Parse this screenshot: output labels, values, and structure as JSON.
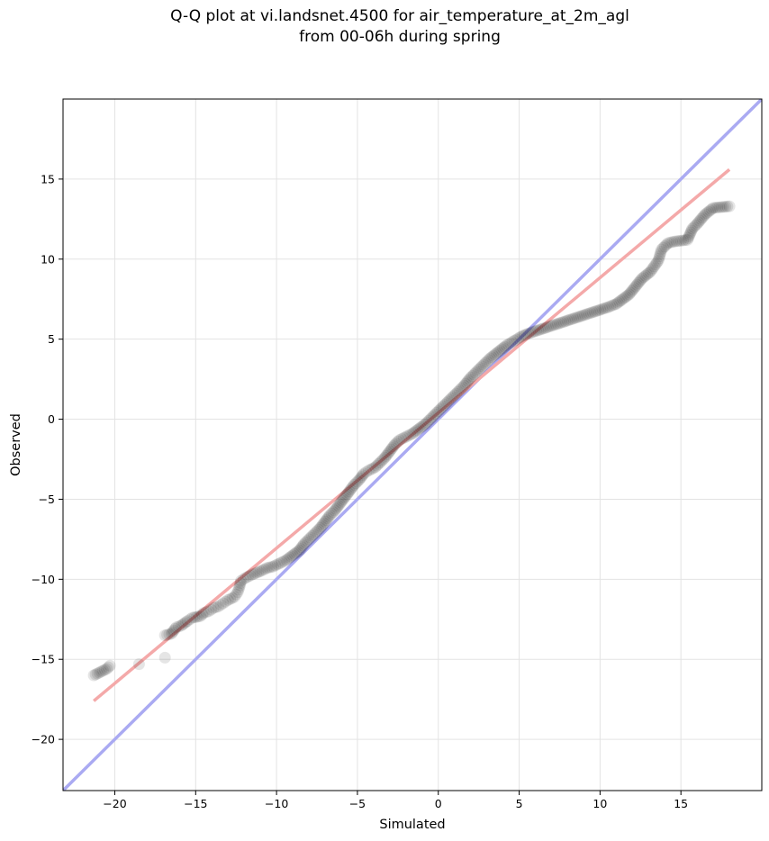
{
  "chart_data": {
    "type": "scatter",
    "title": "Q-Q plot at vi.landsnet.4500 for air_temperature_at_2m_agl",
    "subtitle": "from 00-06h during spring",
    "xlabel": "Simulated",
    "ylabel": "Observed",
    "xlim": [
      -23.2,
      20.0
    ],
    "ylim": [
      -23.2,
      20.0
    ],
    "x_ticks": [
      -20,
      -15,
      -10,
      -5,
      0,
      5,
      10,
      15
    ],
    "y_ticks": [
      -20,
      -15,
      -10,
      -5,
      0,
      5,
      10,
      15
    ],
    "x_tick_labels": [
      "−20",
      "−15",
      "−10",
      "−5",
      "0",
      "5",
      "10",
      "15"
    ],
    "y_tick_labels": [
      "−20",
      "−15",
      "−10",
      "−5",
      "0",
      "5",
      "10",
      "15"
    ],
    "grid": true,
    "legend": "none",
    "reference_line": {
      "name": "1:1 line",
      "color": "#aaaaf2",
      "x": [
        -23.2,
        20.0
      ],
      "y": [
        -23.2,
        20.0
      ]
    },
    "fit_line": {
      "name": "linear fit",
      "color": "#f4a9a9",
      "x": [
        -21.3,
        18.0
      ],
      "y": [
        -17.6,
        15.6
      ]
    },
    "points_color": "#000000",
    "points": [
      [
        -21.3,
        -16.0
      ],
      [
        -20.5,
        -15.6
      ],
      [
        -20.3,
        -15.4
      ],
      [
        -18.5,
        -15.3
      ],
      [
        -16.9,
        -14.9
      ],
      [
        -16.9,
        -13.5
      ],
      [
        -16.5,
        -13.4
      ],
      [
        -16.2,
        -13.0
      ],
      [
        -15.9,
        -12.9
      ],
      [
        -15.5,
        -12.6
      ],
      [
        -15.2,
        -12.4
      ],
      [
        -14.7,
        -12.3
      ],
      [
        -14.5,
        -12.1
      ],
      [
        -14.2,
        -12.0
      ],
      [
        -13.9,
        -11.8
      ],
      [
        -13.6,
        -11.7
      ],
      [
        -13.3,
        -11.5
      ],
      [
        -13.0,
        -11.3
      ],
      [
        -12.6,
        -11.1
      ],
      [
        -12.4,
        -10.8
      ],
      [
        -12.3,
        -10.5
      ],
      [
        -12.2,
        -10.1
      ],
      [
        -11.9,
        -9.9
      ],
      [
        -11.5,
        -9.7
      ],
      [
        -11.0,
        -9.5
      ],
      [
        -10.6,
        -9.3
      ],
      [
        -10.2,
        -9.2
      ],
      [
        -9.8,
        -9.0
      ],
      [
        -9.4,
        -8.8
      ],
      [
        -9.0,
        -8.5
      ],
      [
        -8.6,
        -8.2
      ],
      [
        -8.3,
        -7.8
      ],
      [
        -8.0,
        -7.5
      ],
      [
        -7.6,
        -7.1
      ],
      [
        -7.3,
        -6.8
      ],
      [
        -7.0,
        -6.4
      ],
      [
        -6.7,
        -6.0
      ],
      [
        -6.4,
        -5.7
      ],
      [
        -6.1,
        -5.3
      ],
      [
        -5.8,
        -4.9
      ],
      [
        -5.5,
        -4.5
      ],
      [
        -5.2,
        -4.1
      ],
      [
        -4.9,
        -3.8
      ],
      [
        -4.6,
        -3.4
      ],
      [
        -4.3,
        -3.2
      ],
      [
        -3.9,
        -3.0
      ],
      [
        -3.6,
        -2.7
      ],
      [
        -3.3,
        -2.4
      ],
      [
        -3.0,
        -2.0
      ],
      [
        -2.7,
        -1.6
      ],
      [
        -2.4,
        -1.3
      ],
      [
        -2.0,
        -1.1
      ],
      [
        -1.6,
        -0.9
      ],
      [
        -1.2,
        -0.6
      ],
      [
        -0.8,
        -0.3
      ],
      [
        -0.4,
        0.1
      ],
      [
        0.0,
        0.5
      ],
      [
        0.4,
        0.9
      ],
      [
        0.8,
        1.3
      ],
      [
        1.2,
        1.7
      ],
      [
        1.6,
        2.1
      ],
      [
        2.0,
        2.6
      ],
      [
        2.4,
        3.0
      ],
      [
        2.8,
        3.4
      ],
      [
        3.2,
        3.8
      ],
      [
        3.7,
        4.2
      ],
      [
        4.2,
        4.6
      ],
      [
        4.7,
        4.9
      ],
      [
        5.2,
        5.2
      ],
      [
        5.7,
        5.4
      ],
      [
        6.3,
        5.6
      ],
      [
        6.9,
        5.8
      ],
      [
        7.5,
        6.0
      ],
      [
        8.1,
        6.2
      ],
      [
        8.7,
        6.4
      ],
      [
        9.3,
        6.6
      ],
      [
        9.9,
        6.8
      ],
      [
        10.5,
        7.0
      ],
      [
        11.0,
        7.2
      ],
      [
        11.4,
        7.5
      ],
      [
        11.8,
        7.8
      ],
      [
        12.2,
        8.3
      ],
      [
        12.6,
        8.8
      ],
      [
        13.1,
        9.2
      ],
      [
        13.6,
        9.9
      ],
      [
        13.8,
        10.6
      ],
      [
        14.2,
        11.0
      ],
      [
        14.6,
        11.1
      ],
      [
        15.4,
        11.2
      ],
      [
        15.7,
        11.9
      ],
      [
        16.0,
        12.2
      ],
      [
        16.5,
        12.8
      ],
      [
        17.0,
        13.2
      ],
      [
        18.0,
        13.3
      ]
    ]
  }
}
